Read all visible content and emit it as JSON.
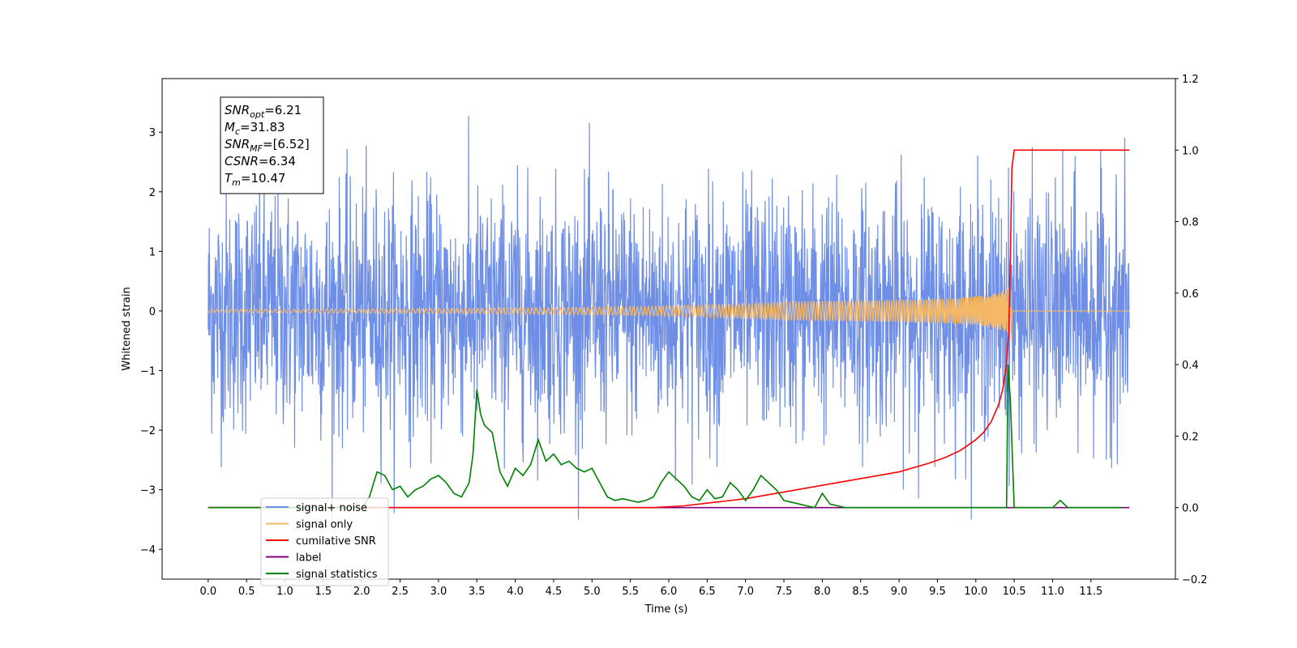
{
  "chart_data": {
    "type": "line",
    "xlabel": "Time (s)",
    "ylabel": "Whitened strain",
    "xlim": [
      -0.6,
      12.6
    ],
    "ylim": [
      -4.5,
      3.9
    ],
    "y2lim": [
      -0.2,
      1.2
    ],
    "x_ticks": [
      0.0,
      0.5,
      1.0,
      1.5,
      2.0,
      2.5,
      3.0,
      3.5,
      4.0,
      4.5,
      5.0,
      5.5,
      6.0,
      6.5,
      7.0,
      7.5,
      8.0,
      8.5,
      9.0,
      9.5,
      10.0,
      10.5,
      11.0,
      11.5
    ],
    "x_tick_labels": [
      "0.0",
      "0.5",
      "1.0",
      "1.5",
      "2.0",
      "2.5",
      "3.0",
      "3.5",
      "4.0",
      "4.5",
      "5.0",
      "5.5",
      "6.0",
      "6.5",
      "7.0",
      "7.5",
      "8.0",
      "8.5",
      "9.0",
      "9.5",
      "10.0",
      "10.5",
      "11.0",
      "11.5"
    ],
    "y_ticks": [
      -4,
      -3,
      -2,
      -1,
      0,
      1,
      2,
      3
    ],
    "y_tick_labels": [
      "−4",
      "−3",
      "−2",
      "−1",
      "0",
      "1",
      "2",
      "3"
    ],
    "y2_ticks": [
      -0.2,
      0.0,
      0.2,
      0.4,
      0.6,
      0.8,
      1.0,
      1.2
    ],
    "y2_tick_labels": [
      "−0.2",
      "0.0",
      "0.2",
      "0.4",
      "0.6",
      "0.8",
      "1.0",
      "1.2"
    ],
    "grid": false,
    "legend_placement": "lower-left",
    "colors": {
      "noise": "#6f8fe6",
      "signal": "#f5b867",
      "cumulative": "#ff0000",
      "label": "#800080",
      "stats": "#008000"
    },
    "annotation_lines": [
      {
        "name": "SNR",
        "sub": "opt",
        "value": "=6.21"
      },
      {
        "name": "M",
        "sub": "c",
        "value": "=31.83"
      },
      {
        "name": "SNR",
        "sub": "MF",
        "value": "=[6.52]"
      },
      {
        "name": "CSNR",
        "sub": "",
        "value": "=6.34"
      },
      {
        "name": "T",
        "sub": "m",
        "value": "=10.47"
      }
    ],
    "series": [
      {
        "name": "signal+ noise",
        "axis": "left",
        "description_summary": "whitened noise, amplitude about ±2.3 with peaks to ±3.5, from 0 to 12 s",
        "x_range": [
          0.0,
          12.0
        ],
        "amplitude": 1.0
      },
      {
        "name": "signal only",
        "axis": "left",
        "x_range": [
          0.0,
          10.47
        ],
        "peak_amplitude": 0.55,
        "merger_time": 10.47
      },
      {
        "name": "cumilative SNR",
        "axis": "right",
        "x": [
          0.0,
          5.8,
          6.2,
          6.6,
          7.0,
          7.4,
          7.8,
          8.2,
          8.6,
          9.0,
          9.4,
          9.6,
          9.8,
          10.0,
          10.1,
          10.2,
          10.3,
          10.35,
          10.4,
          10.43,
          10.45,
          10.47,
          10.5,
          12.0
        ],
        "y": [
          0.0,
          0.0,
          0.005,
          0.015,
          0.025,
          0.04,
          0.055,
          0.07,
          0.085,
          0.1,
          0.125,
          0.14,
          0.16,
          0.19,
          0.21,
          0.24,
          0.29,
          0.33,
          0.4,
          0.5,
          0.7,
          0.95,
          1.0,
          1.0
        ]
      },
      {
        "name": "label",
        "axis": "right",
        "x": [
          0.0,
          12.0
        ],
        "y": [
          0.0,
          0.0
        ]
      },
      {
        "name": "signal statistics",
        "axis": "right",
        "x": [
          0.0,
          2.0,
          2.1,
          2.2,
          2.3,
          2.4,
          2.5,
          2.6,
          2.7,
          2.8,
          2.9,
          3.0,
          3.1,
          3.2,
          3.3,
          3.4,
          3.45,
          3.5,
          3.55,
          3.6,
          3.7,
          3.8,
          3.9,
          4.0,
          4.1,
          4.2,
          4.3,
          4.4,
          4.5,
          4.6,
          4.7,
          4.8,
          4.9,
          5.0,
          5.1,
          5.2,
          5.3,
          5.4,
          5.5,
          5.6,
          5.7,
          5.8,
          5.9,
          6.0,
          6.1,
          6.2,
          6.3,
          6.4,
          6.5,
          6.6,
          6.7,
          6.8,
          6.9,
          7.0,
          7.1,
          7.2,
          7.3,
          7.4,
          7.5,
          7.6,
          7.7,
          7.8,
          7.9,
          8.0,
          8.1,
          8.2,
          8.3,
          8.5,
          10.0,
          10.2,
          10.3,
          10.4,
          10.42,
          10.45,
          10.5,
          10.6,
          10.8,
          11.0,
          11.1,
          11.2,
          11.9
        ],
        "y": [
          0.0,
          0.0,
          0.03,
          0.1,
          0.09,
          0.05,
          0.06,
          0.03,
          0.05,
          0.06,
          0.08,
          0.09,
          0.07,
          0.04,
          0.03,
          0.07,
          0.15,
          0.33,
          0.26,
          0.23,
          0.21,
          0.1,
          0.06,
          0.11,
          0.09,
          0.12,
          0.19,
          0.13,
          0.15,
          0.12,
          0.13,
          0.11,
          0.1,
          0.11,
          0.07,
          0.03,
          0.02,
          0.025,
          0.02,
          0.015,
          0.02,
          0.03,
          0.07,
          0.1,
          0.08,
          0.06,
          0.03,
          0.02,
          0.05,
          0.025,
          0.03,
          0.07,
          0.05,
          0.02,
          0.05,
          0.09,
          0.07,
          0.05,
          0.02,
          0.015,
          0.01,
          0.005,
          0.0,
          0.04,
          0.01,
          0.005,
          0.0,
          0.0,
          0.0,
          0.0,
          0.0,
          0.0,
          0.4,
          0.3,
          0.0,
          0.0,
          0.0,
          0.0,
          0.02,
          0.0,
          0.0
        ]
      }
    ],
    "legend": [
      {
        "label": "signal+ noise",
        "color_key": "noise"
      },
      {
        "label": "signal only",
        "color_key": "signal"
      },
      {
        "label": "cumilative SNR",
        "color_key": "cumulative"
      },
      {
        "label": "label",
        "color_key": "label"
      },
      {
        "label": "signal statistics",
        "color_key": "stats"
      }
    ]
  }
}
